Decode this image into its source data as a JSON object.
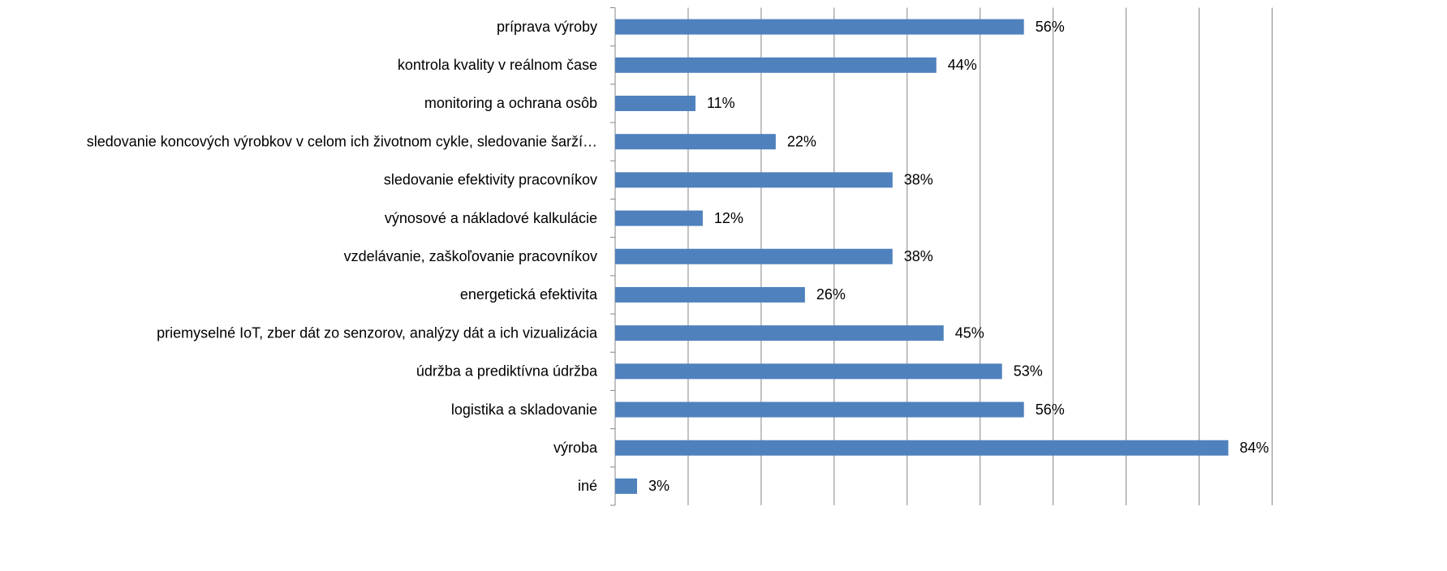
{
  "chart_data": {
    "type": "bar",
    "orientation": "horizontal",
    "categories": [
      "príprava výroby",
      "kontrola kvality v reálnom čase",
      "monitoring a ochrana osôb",
      "sledovanie koncových výrobkov v celom ich životnom cykle, sledovanie šarží…",
      "sledovanie efektivity pracovníkov",
      "výnosové a nákladové kalkulácie",
      "vzdelávanie, zaškoľovanie pracovníkov",
      "energetická efektivita",
      "priemyselné IoT, zber dát zo senzorov, analýzy dát a ich vizualizácia",
      "údržba a prediktívna údržba",
      "logistika a skladovanie",
      "výroba",
      "iné"
    ],
    "values": [
      56,
      44,
      11,
      22,
      38,
      12,
      38,
      26,
      45,
      53,
      56,
      84,
      3
    ],
    "value_labels": [
      "56%",
      "44%",
      "11%",
      "22%",
      "38%",
      "12%",
      "38%",
      "26%",
      "45%",
      "53%",
      "56%",
      "84%",
      "3%"
    ],
    "color": "#4f81bd",
    "xlim": [
      0,
      90
    ],
    "xticks": [
      0,
      10,
      20,
      30,
      40,
      50,
      60,
      70,
      80,
      90
    ],
    "grid": true
  }
}
